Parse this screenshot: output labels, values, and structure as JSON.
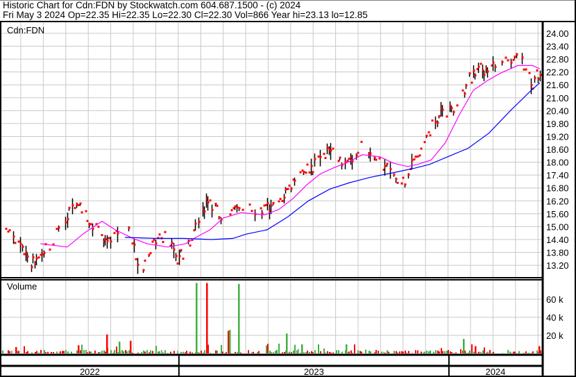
{
  "header": {
    "title": "Historic Chart for Cdn:FDN by Stockwatch.com 604.687.1500 - (c) 2024",
    "quote": "Fri May  3 2024  Op=22.35  Hi=22.35  Lo=22.30  Cl=22.30  Vol=866  Year hi=23.13  lo=12.85"
  },
  "chart_data": [
    {
      "type": "line",
      "title": "Cdn:FDN",
      "symbol": "Cdn:FDN",
      "y_ticks": [
        "24.00",
        "23.40",
        "22.80",
        "22.20",
        "21.60",
        "21.00",
        "20.40",
        "19.80",
        "19.20",
        "18.60",
        "18.00",
        "17.40",
        "16.80",
        "16.20",
        "15.60",
        "15.00",
        "14.40",
        "13.80",
        "13.20"
      ],
      "ylim": [
        12.7,
        24.5
      ],
      "grid": true,
      "x_labels": [
        "2022",
        "2023",
        "2024"
      ],
      "xlim": [
        "2022-05-06",
        "2024-05-03"
      ],
      "colors": {
        "up_dot": "#ff0000",
        "bar": "#000000",
        "ma_short": "#ff00ff",
        "ma_long": "#0000ff"
      },
      "series": [
        {
          "kind": "price",
          "points": [
            [
              "2022-05-09",
              15.2
            ],
            [
              "2022-05-25",
              14.2
            ],
            [
              "2022-06-17",
              13.3
            ],
            [
              "2022-07-11",
              14.2
            ],
            [
              "2022-08-08",
              15.8
            ],
            [
              "2022-08-17",
              16.3
            ],
            [
              "2022-08-31",
              15.2
            ],
            [
              "2022-09-23",
              14.4
            ],
            [
              "2022-10-27",
              14.7
            ],
            [
              "2022-11-10",
              12.9
            ],
            [
              "2022-11-24",
              14.1
            ],
            [
              "2022-12-16",
              14.7
            ],
            [
              "2022-12-30",
              13.4
            ],
            [
              "2023-01-13",
              14.2
            ],
            [
              "2023-02-07",
              16.2
            ],
            [
              "2023-03-02",
              15.4
            ],
            [
              "2023-03-24",
              15.9
            ],
            [
              "2023-04-21",
              15.7
            ],
            [
              "2023-05-16",
              16.0
            ],
            [
              "2023-05-26",
              16.65
            ],
            [
              "2023-06-13",
              17.6
            ],
            [
              "2023-06-30",
              17.8
            ],
            [
              "2023-07-21",
              18.6
            ],
            [
              "2023-08-09",
              17.9
            ],
            [
              "2023-09-06",
              18.75
            ],
            [
              "2023-09-25",
              17.9
            ],
            [
              "2023-10-13",
              17.8
            ],
            [
              "2023-10-27",
              16.8
            ],
            [
              "2023-11-10",
              17.9
            ],
            [
              "2023-11-24",
              18.6
            ],
            [
              "2023-12-08",
              19.7
            ],
            [
              "2023-12-22",
              20.4
            ],
            [
              "2024-01-10",
              20.4
            ],
            [
              "2024-01-24",
              21.7
            ],
            [
              "2024-02-12",
              22.3
            ],
            [
              "2024-03-01",
              22.5
            ],
            [
              "2024-03-20",
              22.6
            ],
            [
              "2024-04-08",
              22.8
            ],
            [
              "2024-04-23",
              21.7
            ],
            [
              "2024-05-03",
              22.3
            ]
          ]
        },
        {
          "kind": "ma_short",
          "points": [
            [
              "2022-06-28",
              14.2
            ],
            [
              "2022-08-03",
              14.05
            ],
            [
              "2022-08-26",
              14.7
            ],
            [
              "2022-09-19",
              15.25
            ],
            [
              "2022-10-07",
              14.85
            ],
            [
              "2022-10-31",
              14.45
            ],
            [
              "2022-11-19",
              14.2
            ],
            [
              "2022-12-17",
              14.05
            ],
            [
              "2023-01-10",
              14.2
            ],
            [
              "2023-01-24",
              14.5
            ],
            [
              "2023-02-12",
              14.85
            ],
            [
              "2023-03-02",
              15.4
            ],
            [
              "2023-03-26",
              15.65
            ],
            [
              "2023-04-27",
              15.55
            ],
            [
              "2023-05-16",
              15.8
            ],
            [
              "2023-06-04",
              16.3
            ],
            [
              "2023-06-23",
              16.95
            ],
            [
              "2023-07-11",
              17.45
            ],
            [
              "2023-07-30",
              17.75
            ],
            [
              "2023-08-18",
              18.0
            ],
            [
              "2023-09-06",
              18.35
            ],
            [
              "2023-09-30",
              18.25
            ],
            [
              "2023-10-18",
              17.95
            ],
            [
              "2023-11-06",
              17.8
            ],
            [
              "2023-11-20",
              17.9
            ],
            [
              "2023-12-08",
              18.1
            ],
            [
              "2023-12-27",
              18.9
            ],
            [
              "2024-01-15",
              20.2
            ],
            [
              "2024-02-03",
              21.35
            ],
            [
              "2024-02-22",
              21.8
            ],
            [
              "2024-03-11",
              22.15
            ],
            [
              "2024-04-03",
              22.5
            ],
            [
              "2024-04-23",
              22.5
            ],
            [
              "2024-05-03",
              22.35
            ]
          ]
        },
        {
          "kind": "ma_long",
          "points": [
            [
              "2022-10-20",
              14.5
            ],
            [
              "2022-12-01",
              14.45
            ],
            [
              "2023-01-08",
              14.45
            ],
            [
              "2023-02-14",
              14.4
            ],
            [
              "2023-03-15",
              14.45
            ],
            [
              "2023-04-02",
              14.65
            ],
            [
              "2023-04-30",
              14.85
            ],
            [
              "2023-05-28",
              15.45
            ],
            [
              "2023-06-25",
              16.2
            ],
            [
              "2023-07-24",
              16.75
            ],
            [
              "2023-08-20",
              17.05
            ],
            [
              "2023-09-17",
              17.3
            ],
            [
              "2023-10-16",
              17.5
            ],
            [
              "2023-11-13",
              17.7
            ],
            [
              "2023-12-06",
              17.9
            ],
            [
              "2023-12-30",
              18.25
            ],
            [
              "2024-01-27",
              18.65
            ],
            [
              "2024-02-24",
              19.35
            ],
            [
              "2024-03-24",
              20.4
            ],
            [
              "2024-04-20",
              21.3
            ],
            [
              "2024-05-03",
              21.7
            ]
          ]
        }
      ]
    },
    {
      "type": "bar",
      "title": "Volume",
      "y_ticks": [
        "60 k",
        "40 k",
        "20 k"
      ],
      "ylim": [
        0,
        84000
      ],
      "colors": {
        "up": "#40b040",
        "down": "#ff0000",
        "flat": "#a0a0a0"
      },
      "notable_bars": [
        {
          "date": "2022-05-25",
          "value": 7000,
          "dir": "down"
        },
        {
          "date": "2022-08-17",
          "value": 9000,
          "dir": "down"
        },
        {
          "date": "2022-09-25",
          "value": 21000,
          "dir": "down"
        },
        {
          "date": "2022-10-27",
          "value": 14000,
          "dir": "down"
        },
        {
          "date": "2022-10-12",
          "value": 13000,
          "dir": "up"
        },
        {
          "date": "2023-01-24",
          "value": 78000,
          "dir": "up"
        },
        {
          "date": "2023-02-07",
          "value": 78000,
          "dir": "down"
        },
        {
          "date": "2023-03-08",
          "value": 25000,
          "dir": "down"
        },
        {
          "date": "2023-03-10",
          "value": 26000,
          "dir": "up"
        },
        {
          "date": "2023-03-22",
          "value": 77000,
          "dir": "up"
        },
        {
          "date": "2023-05-26",
          "value": 22000,
          "dir": "up"
        },
        {
          "date": "2023-06-15",
          "value": 10000,
          "dir": "up"
        },
        {
          "date": "2023-08-14",
          "value": 10000,
          "dir": "up"
        },
        {
          "date": "2024-01-20",
          "value": 16000,
          "dir": "up"
        },
        {
          "date": "2024-02-05",
          "value": 8000,
          "dir": "down"
        },
        {
          "date": "2024-05-01",
          "value": 8000,
          "dir": "down"
        }
      ]
    }
  ]
}
